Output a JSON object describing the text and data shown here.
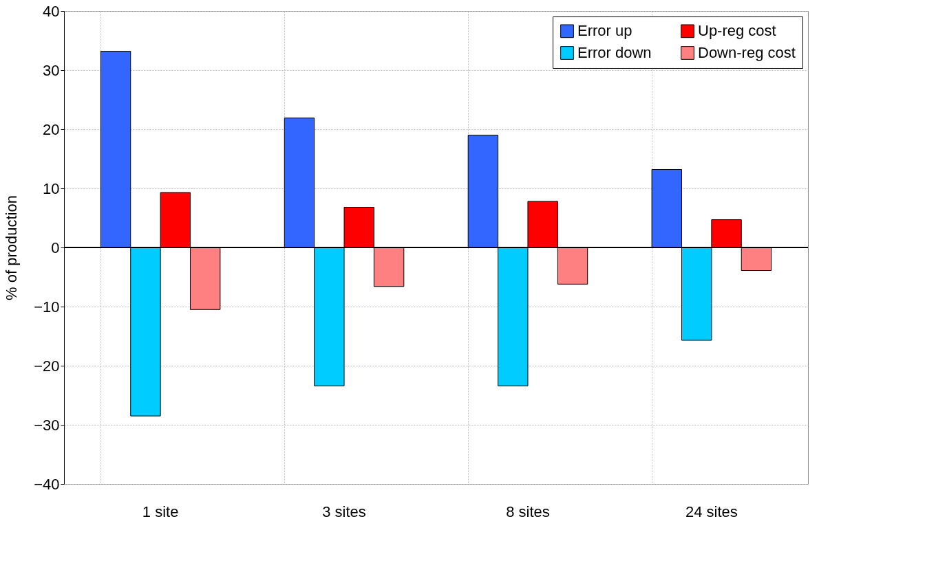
{
  "chart_data": {
    "type": "bar",
    "ylabel": "% of production",
    "categories": [
      "1 site",
      "3 sites",
      "8 sites",
      "24 sites"
    ],
    "series": [
      {
        "name": "Error up",
        "color": "#3366ff",
        "values": [
          33.2,
          21.9,
          19.0,
          13.2
        ]
      },
      {
        "name": "Error down",
        "color": "#00ccff",
        "values": [
          -28.5,
          -23.4,
          -23.4,
          -15.7
        ]
      },
      {
        "name": "Up-reg cost",
        "color": "#ff0000",
        "values": [
          9.3,
          6.8,
          7.8,
          4.7
        ]
      },
      {
        "name": "Down-reg cost",
        "color": "#ff8080",
        "values": [
          -10.5,
          -6.6,
          -6.2,
          -3.9
        ]
      }
    ],
    "ylim": [
      -40,
      40
    ],
    "yticks": [
      -40,
      -30,
      -20,
      -10,
      0,
      10,
      20,
      30,
      40
    ],
    "grid": true,
    "legend": "top right"
  }
}
